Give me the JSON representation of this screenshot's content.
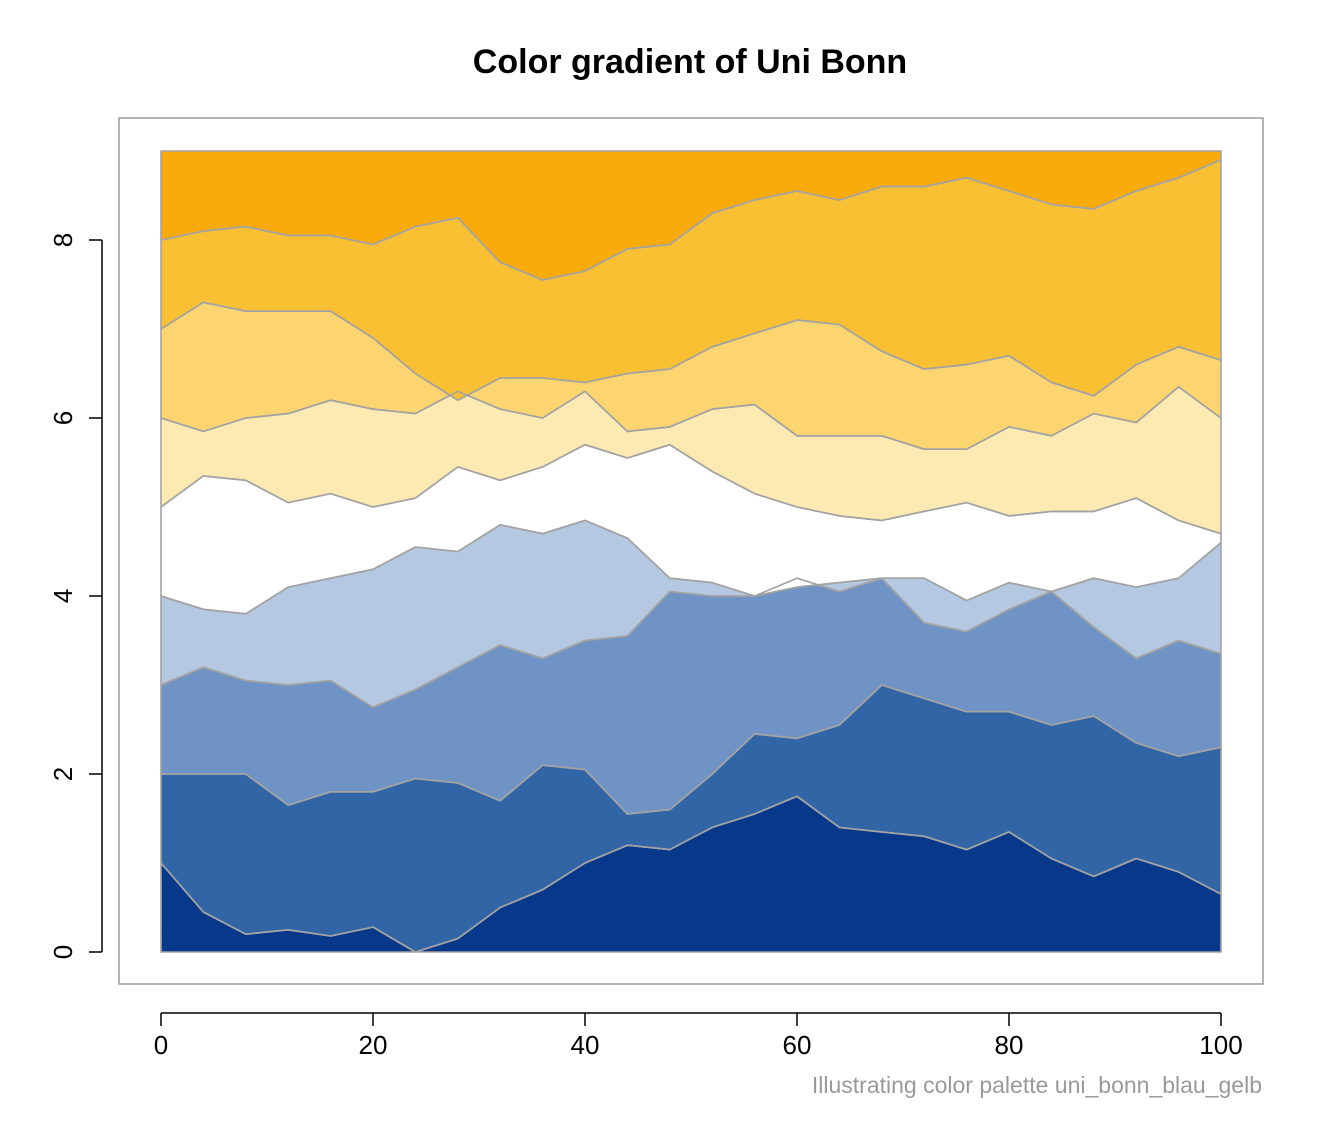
{
  "chart_data": {
    "type": "area",
    "title": "Color gradient of Uni Bonn",
    "caption": "Illustrating color palette uni_bonn_blau_gelb",
    "xlabel": "",
    "ylabel": "",
    "xlim": [
      0,
      100
    ],
    "ylim": [
      0,
      9
    ],
    "x_ticks": [
      "0",
      "20",
      "40",
      "60",
      "80",
      "100"
    ],
    "y_ticks": [
      "0",
      "2",
      "4",
      "6",
      "8"
    ],
    "grid": false,
    "legend": "none",
    "colors": [
      "#07388a",
      "#3165a5",
      "#6f93c4",
      "#b4c8e2",
      "#ffffff",
      "#fdeab3",
      "#fcd570",
      "#fac034",
      "#f9ab0c"
    ],
    "stroke_color": "#a3a3a3",
    "x": [
      0,
      4,
      8,
      12,
      16,
      20,
      24,
      28,
      32,
      36,
      40,
      44,
      48,
      52,
      56,
      60,
      64,
      68,
      72,
      76,
      80,
      84,
      88,
      92,
      96,
      100
    ],
    "boundaries": [
      {
        "name": "b1",
        "values": [
          1.0,
          0.45,
          0.2,
          0.25,
          0.18,
          0.28,
          0.0,
          0.15,
          0.5,
          0.7,
          1.0,
          1.2,
          1.15,
          1.4,
          1.55,
          1.75,
          1.4,
          1.35,
          1.3,
          1.15,
          1.35,
          1.05,
          0.85,
          1.05,
          0.9,
          0.65
        ]
      },
      {
        "name": "b2",
        "values": [
          2.0,
          2.0,
          2.0,
          1.65,
          1.8,
          1.8,
          1.95,
          1.9,
          1.7,
          2.1,
          2.05,
          1.55,
          1.6,
          2.0,
          2.45,
          2.4,
          2.55,
          3.0,
          2.85,
          2.7,
          2.7,
          2.55,
          2.65,
          2.35,
          2.2,
          2.3
        ]
      },
      {
        "name": "b3",
        "values": [
          3.0,
          3.2,
          3.05,
          3.0,
          3.05,
          2.75,
          2.95,
          3.2,
          3.45,
          3.3,
          3.5,
          3.55,
          4.05,
          4.0,
          4.0,
          4.2,
          4.05,
          4.2,
          3.7,
          3.6,
          3.85,
          4.05,
          3.65,
          3.3,
          3.5,
          3.35
        ]
      },
      {
        "name": "b4",
        "values": [
          4.0,
          3.85,
          3.8,
          4.1,
          4.2,
          4.3,
          4.55,
          4.5,
          4.8,
          4.7,
          4.85,
          4.65,
          4.2,
          4.15,
          4.0,
          4.1,
          4.15,
          4.2,
          4.2,
          3.95,
          4.15,
          4.05,
          4.2,
          4.1,
          4.2,
          4.6
        ]
      },
      {
        "name": "b5",
        "values": [
          5.0,
          5.35,
          5.3,
          5.05,
          5.15,
          5.0,
          5.1,
          5.45,
          5.3,
          5.45,
          5.7,
          5.55,
          5.7,
          5.4,
          5.15,
          5.0,
          4.9,
          4.85,
          4.95,
          5.05,
          4.9,
          4.95,
          4.95,
          5.1,
          4.85,
          4.7
        ]
      },
      {
        "name": "b6",
        "values": [
          6.0,
          5.85,
          6.0,
          6.05,
          6.2,
          6.1,
          6.05,
          6.3,
          6.1,
          6.0,
          6.3,
          5.85,
          5.9,
          6.1,
          6.15,
          5.8,
          5.8,
          5.8,
          5.65,
          5.65,
          5.9,
          5.8,
          6.05,
          5.95,
          6.35,
          6.0
        ]
      },
      {
        "name": "b7",
        "values": [
          7.0,
          7.3,
          7.2,
          7.2,
          7.2,
          6.9,
          6.5,
          6.2,
          6.45,
          6.45,
          6.4,
          6.5,
          6.55,
          6.8,
          6.95,
          7.1,
          7.05,
          6.75,
          6.55,
          6.6,
          6.7,
          6.4,
          6.25,
          6.6,
          6.8,
          6.65
        ]
      },
      {
        "name": "b8",
        "values": [
          8.0,
          8.1,
          8.15,
          8.05,
          8.05,
          7.95,
          8.15,
          8.25,
          7.75,
          7.55,
          7.65,
          7.9,
          7.95,
          8.3,
          8.45,
          8.55,
          8.45,
          8.6,
          8.6,
          8.7,
          8.55,
          8.4,
          8.35,
          8.55,
          8.7,
          8.9
        ]
      }
    ]
  }
}
